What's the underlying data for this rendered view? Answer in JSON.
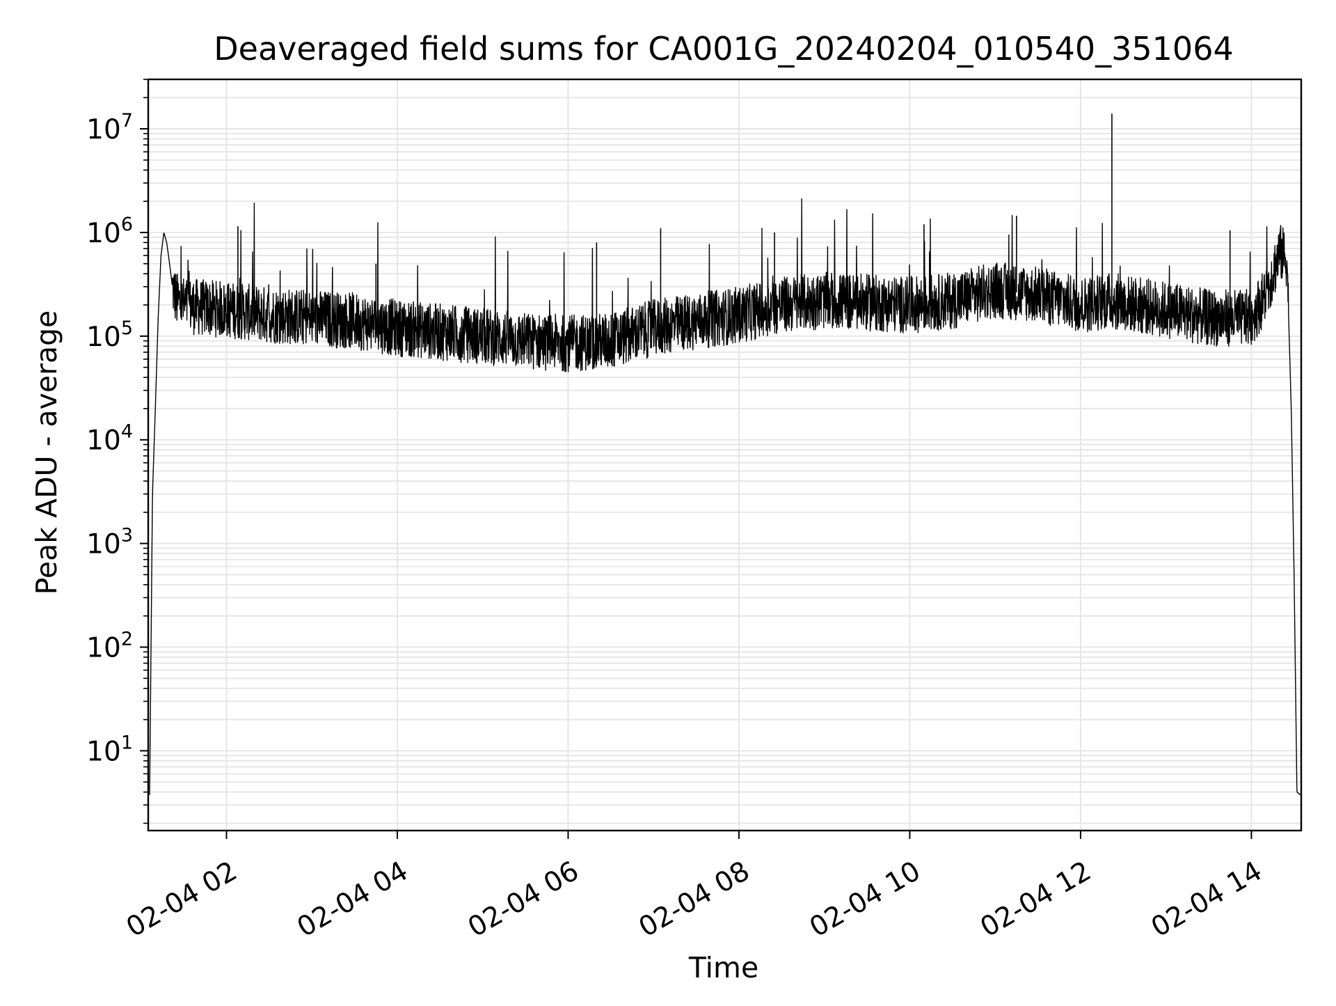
{
  "chart_data": {
    "type": "line",
    "title": "Deaveraged field sums for CA001G_20240204_010540_351064",
    "xlabel": "Time",
    "ylabel": "Peak ADU - average",
    "y_scale": "log",
    "ylim": [
      1.7,
      30000000
    ],
    "xlim": [
      "2024-02-04 01:05",
      "2024-02-04 14:35"
    ],
    "x_ticks": [
      {
        "time": "2024-02-04 02:00",
        "label": "02-04 02"
      },
      {
        "time": "2024-02-04 04:00",
        "label": "02-04 04"
      },
      {
        "time": "2024-02-04 06:00",
        "label": "02-04 06"
      },
      {
        "time": "2024-02-04 08:00",
        "label": "02-04 08"
      },
      {
        "time": "2024-02-04 10:00",
        "label": "02-04 10"
      },
      {
        "time": "2024-02-04 12:00",
        "label": "02-04 12"
      },
      {
        "time": "2024-02-04 14:00",
        "label": "02-04 14"
      }
    ],
    "y_ticks": [
      {
        "value": 10,
        "base": "10",
        "exp": "1"
      },
      {
        "value": 100,
        "base": "10",
        "exp": "2"
      },
      {
        "value": 1000,
        "base": "10",
        "exp": "3"
      },
      {
        "value": 10000,
        "base": "10",
        "exp": "4"
      },
      {
        "value": 100000,
        "base": "10",
        "exp": "5"
      },
      {
        "value": 1000000,
        "base": "10",
        "exp": "6"
      },
      {
        "value": 10000000,
        "base": "10",
        "exp": "7"
      }
    ],
    "grid": {
      "major": true,
      "minor_y": true
    },
    "line_color": "#000000",
    "grid_color": "#e6e6e6",
    "series": [
      {
        "x": [
          "2024-02-04 01:05",
          "2024-02-04 01:06",
          "2024-02-04 01:08",
          "2024-02-04 01:10",
          "2024-02-04 01:12",
          "2024-02-04 01:14",
          "2024-02-04 01:16",
          "2024-02-04 01:18",
          "2024-02-04 01:20",
          "2024-02-04 01:22",
          "2024-02-04 01:25",
          "2024-02-04 01:30",
          "2024-02-04 01:40",
          "2024-02-04 02:00",
          "2024-02-04 02:30",
          "2024-02-04 03:00",
          "2024-02-04 03:30",
          "2024-02-04 04:00",
          "2024-02-04 04:30",
          "2024-02-04 05:00",
          "2024-02-04 05:30",
          "2024-02-04 06:00",
          "2024-02-04 06:30",
          "2024-02-04 07:00",
          "2024-02-04 07:30",
          "2024-02-04 08:00",
          "2024-02-04 08:30",
          "2024-02-04 09:00",
          "2024-02-04 09:30",
          "2024-02-04 10:00",
          "2024-02-04 10:30",
          "2024-02-04 11:00",
          "2024-02-04 11:30",
          "2024-02-04 12:00",
          "2024-02-04 12:20",
          "2024-02-04 12:30",
          "2024-02-04 13:00",
          "2024-02-04 13:30",
          "2024-02-04 14:00",
          "2024-02-04 14:10",
          "2024-02-04 14:20",
          "2024-02-04 14:25",
          "2024-02-04 14:28",
          "2024-02-04 14:30",
          "2024-02-04 14:32",
          "2024-02-04 14:34",
          "2024-02-04 14:35"
        ],
        "y": [
          3.8,
          3.8,
          3000,
          20000,
          150000,
          600000,
          1000000,
          800000,
          500000,
          300000,
          220000,
          200000,
          190000,
          180000,
          160000,
          150000,
          140000,
          120000,
          110000,
          100000,
          90000,
          85000,
          90000,
          120000,
          140000,
          160000,
          200000,
          220000,
          210000,
          200000,
          220000,
          280000,
          250000,
          200000,
          220000,
          210000,
          180000,
          150000,
          150000,
          250000,
          650000,
          550000,
          20000,
          500,
          4.0,
          3.8,
          3.8
        ]
      }
    ],
    "spikes": [
      {
        "x": "2024-02-04 02:08",
        "y": 1150000
      },
      {
        "x": "2024-02-04 03:45",
        "y": 500000
      },
      {
        "x": "2024-02-04 06:20",
        "y": 800000
      },
      {
        "x": "2024-02-04 07:05",
        "y": 1100000
      },
      {
        "x": "2024-02-04 08:25",
        "y": 1000000
      },
      {
        "x": "2024-02-04 10:10",
        "y": 1200000
      },
      {
        "x": "2024-02-04 11:15",
        "y": 1450000
      },
      {
        "x": "2024-02-04 12:22",
        "y": 14000000
      },
      {
        "x": "2024-02-04 13:45",
        "y": 1050000
      }
    ]
  }
}
